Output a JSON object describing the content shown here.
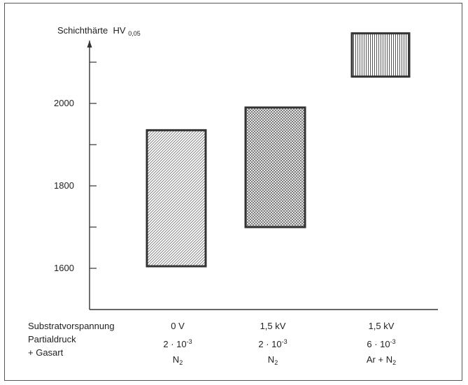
{
  "chart_data": {
    "type": "floating-bar",
    "ylabel": "Schichthärte",
    "ylabel_unit_main": "HV",
    "ylabel_unit_sub": "0,05",
    "y_ticks": [
      1600,
      1800,
      2000
    ],
    "ylim": [
      1600,
      2200
    ],
    "categories": [
      "0 V",
      "1,5 kV",
      "1,5 kV"
    ],
    "bars": [
      {
        "category": "0 V",
        "low": 1605,
        "high": 1935,
        "pattern": "diagonal-hatch"
      },
      {
        "category": "1,5 kV",
        "low": 1700,
        "high": 1990,
        "pattern": "cross-hatch"
      },
      {
        "category": "1,5 kV",
        "low": 2065,
        "high": 2170,
        "pattern": "vertical-lines"
      }
    ],
    "row_labels": {
      "bias": "Substratvorspannung",
      "pressure": "Partialdruck",
      "gas": "+ Gasart"
    },
    "columns": [
      {
        "bias": "0 V",
        "pressure_mantissa": "2 · 10",
        "pressure_exp": "-3",
        "gas_base": "N",
        "gas_sub": "2",
        "gas_prefix": ""
      },
      {
        "bias": "1,5 kV",
        "pressure_mantissa": "2 · 10",
        "pressure_exp": "-3",
        "gas_base": "N",
        "gas_sub": "2",
        "gas_prefix": ""
      },
      {
        "bias": "1,5 kV",
        "pressure_mantissa": "6 · 10",
        "pressure_exp": "-3",
        "gas_base": "N",
        "gas_sub": "2",
        "gas_prefix": "Ar + "
      }
    ],
    "colors": {
      "axis": "#333333",
      "bar_border": "#333333",
      "hatch": "#666666"
    }
  }
}
